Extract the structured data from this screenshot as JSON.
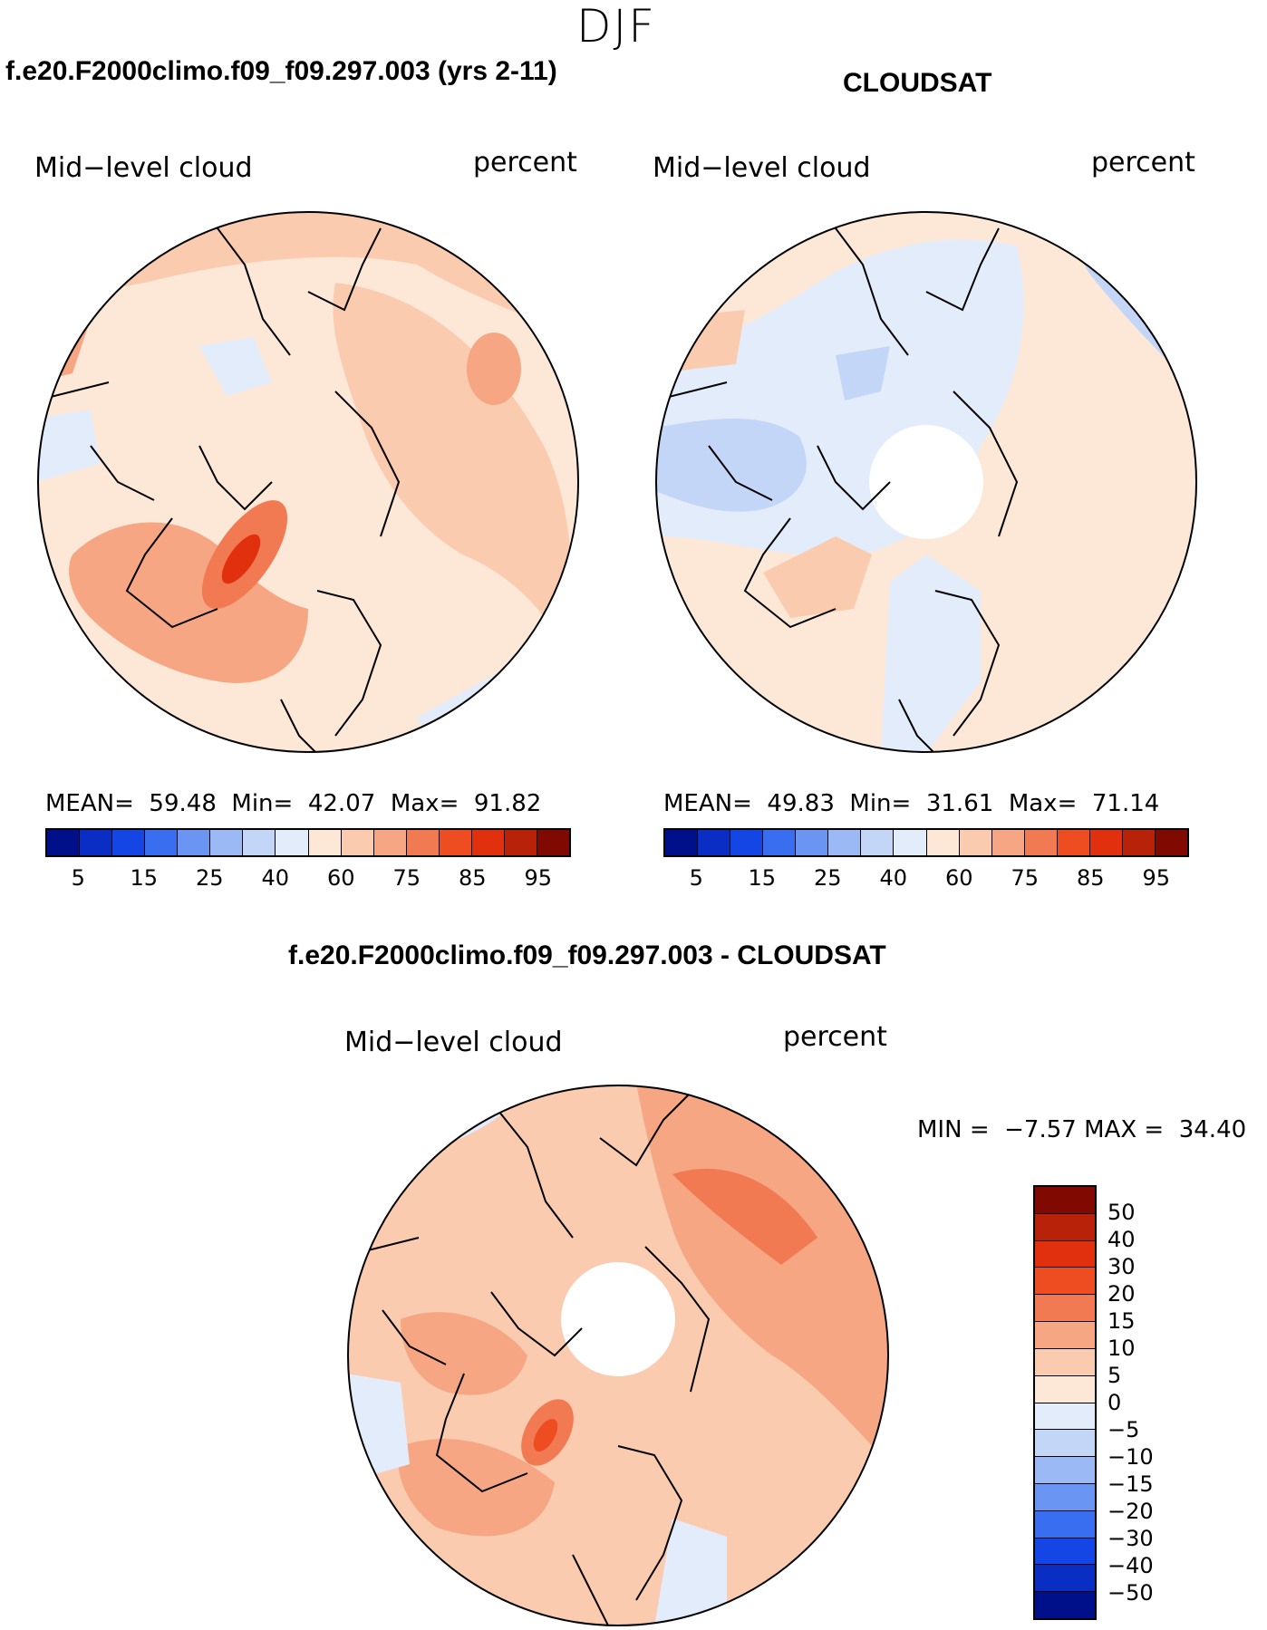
{
  "season": "DJF",
  "panels": {
    "model": {
      "title": "f.e20.F2000climo.f09_f09.297.003 (yrs 2-11)",
      "variable": "Mid−level cloud",
      "units": "percent",
      "stats": {
        "mean_label": "MEAN=",
        "mean": "59.48",
        "min_label": "Min=",
        "min": "42.07",
        "max_label": "Max=",
        "max": "91.82"
      }
    },
    "obs": {
      "title": "CLOUDSAT",
      "variable": "Mid−level cloud",
      "units": "percent",
      "stats": {
        "mean_label": "MEAN=",
        "mean": "49.83",
        "min_label": "Min=",
        "min": "31.61",
        "max_label": "Max=",
        "max": "71.14"
      }
    },
    "diff": {
      "title": "f.e20.F2000climo.f09_f09.297.003 - CLOUDSAT",
      "variable": "Mid−level cloud",
      "units": "percent",
      "stats": {
        "min_label": "MIN =",
        "min": "−7.57",
        "max_label": "MAX =",
        "max": "34.40"
      }
    }
  },
  "colorbar_field": {
    "colors": [
      "#00108a",
      "#0a2ec4",
      "#1446e6",
      "#3a6ef0",
      "#6a95f2",
      "#9bb9f5",
      "#c3d6f7",
      "#e3ecfb",
      "#fde8d8",
      "#fbcbb0",
      "#f6a682",
      "#f27a52",
      "#ee4d22",
      "#e0300e",
      "#b82208",
      "#800a02"
    ],
    "tick_labels": [
      "5",
      "15",
      "25",
      "40",
      "60",
      "75",
      "85",
      "95"
    ]
  },
  "colorbar_diff": {
    "colors": [
      "#800a02",
      "#b82208",
      "#e0300e",
      "#ee4d22",
      "#f27a52",
      "#f6a682",
      "#fbcbb0",
      "#fde8d8",
      "#e3ecfb",
      "#c3d6f7",
      "#9bb9f5",
      "#6a95f2",
      "#3a6ef0",
      "#1446e6",
      "#0a2ec4",
      "#00108a"
    ],
    "tick_labels": [
      "50",
      "40",
      "30",
      "20",
      "15",
      "10",
      "5",
      "0",
      "−5",
      "−10",
      "−15",
      "−20",
      "−30",
      "−40",
      "−50"
    ]
  },
  "colors": {
    "coast": "#000000",
    "background": "#ffffff"
  }
}
